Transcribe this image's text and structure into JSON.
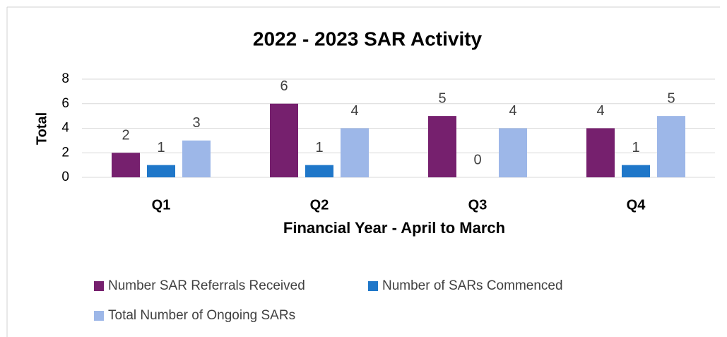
{
  "chart_data": {
    "type": "bar",
    "title": "2022 - 2023 SAR Activity",
    "x_label": "Financial Year - April to March",
    "y_label": "Total",
    "categories": [
      "Q1",
      "Q2",
      "Q3",
      "Q4"
    ],
    "series": [
      {
        "name": "Number SAR Referrals Received",
        "color": "#76206e",
        "values": [
          2,
          6,
          5,
          4
        ]
      },
      {
        "name": "Number of SARs Commenced",
        "color": "#1f77c9",
        "values": [
          1,
          1,
          0,
          1
        ]
      },
      {
        "name": "Total Number of Ongoing SARs",
        "color": "#9db7e8",
        "values": [
          3,
          4,
          4,
          5
        ]
      }
    ],
    "ylim": [
      0,
      8
    ],
    "yticks": [
      0,
      2,
      4,
      6,
      8
    ],
    "grid": true,
    "legend": "bottom"
  }
}
